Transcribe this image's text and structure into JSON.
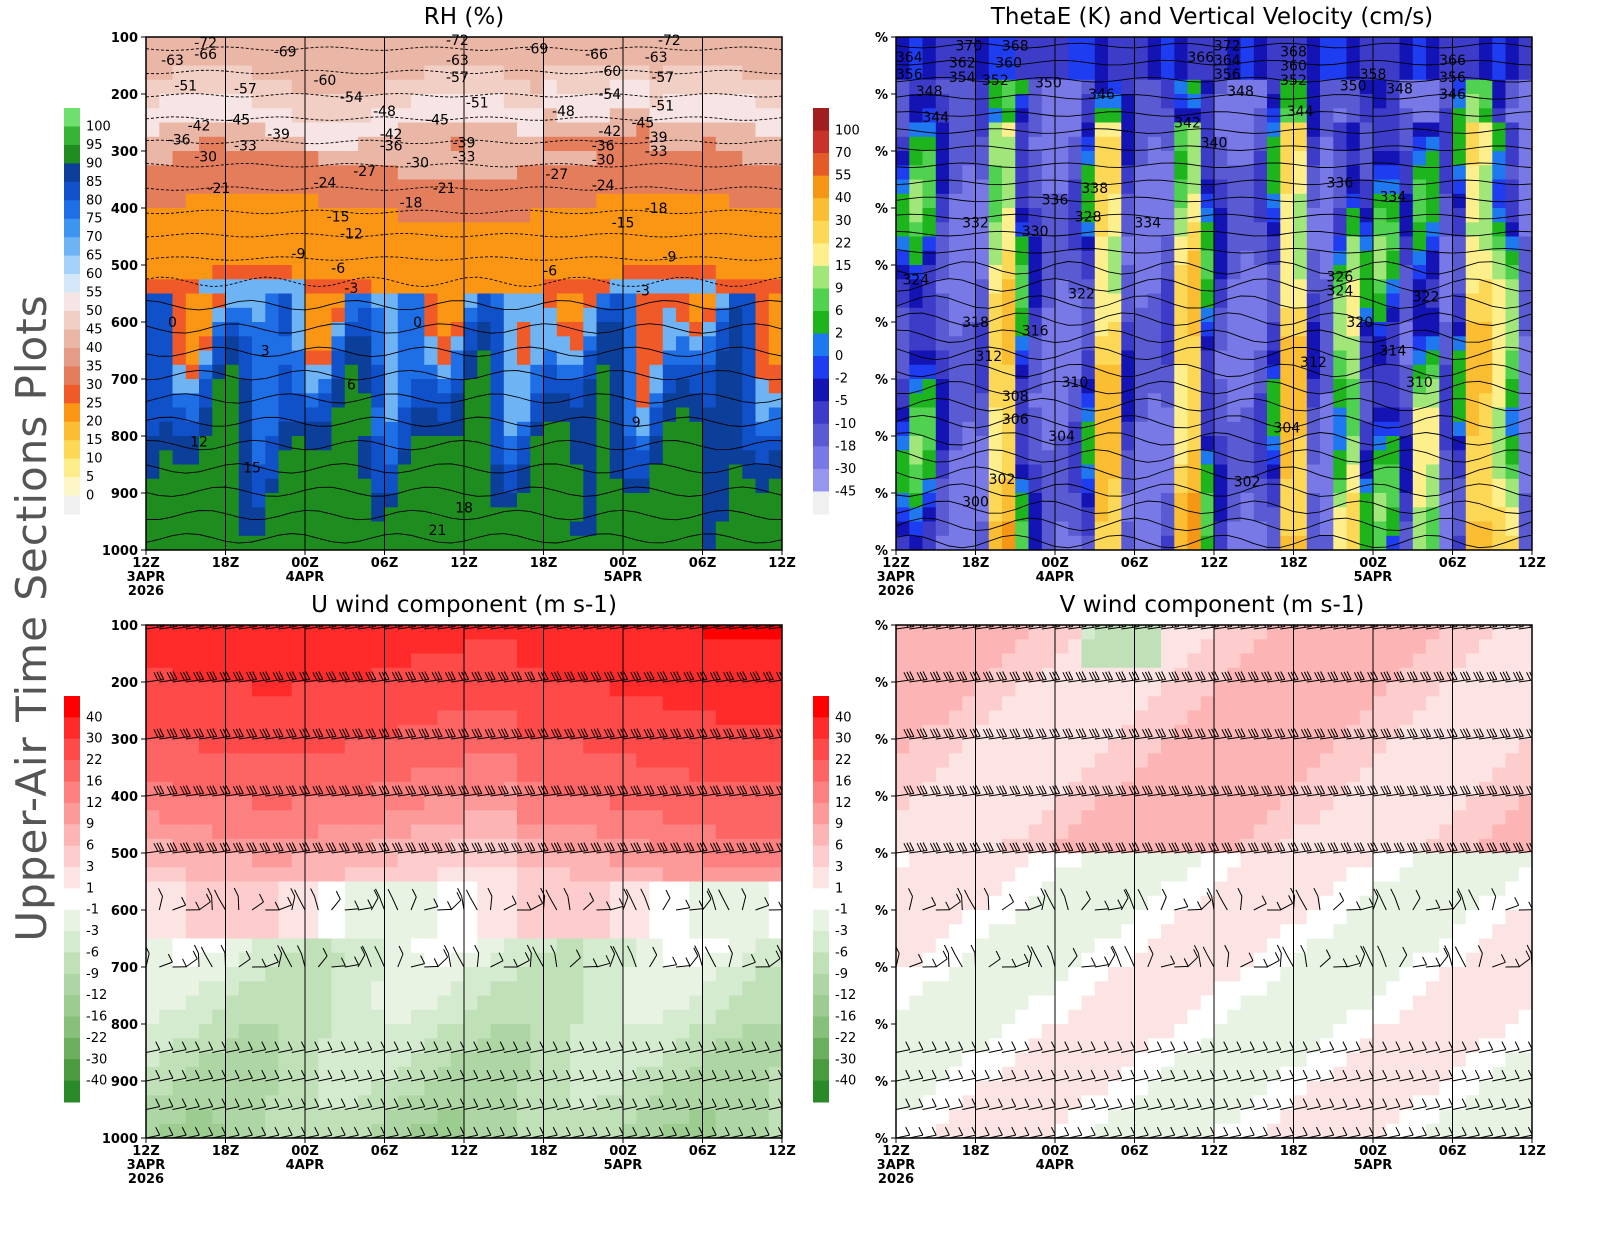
{
  "side_title": "Upper-Air Time Sections Plots",
  "x_ticks": [
    {
      "t": 0,
      "label": "12Z",
      "sub1": "3APR",
      "sub2": "2026"
    },
    {
      "t": 6,
      "label": "18Z"
    },
    {
      "t": 12,
      "label": "00Z",
      "sub1": "4APR"
    },
    {
      "t": 18,
      "label": "06Z"
    },
    {
      "t": 24,
      "label": "12Z"
    },
    {
      "t": 30,
      "label": "18Z"
    },
    {
      "t": 36,
      "label": "00Z",
      "sub1": "5APR"
    },
    {
      "t": 42,
      "label": "06Z"
    },
    {
      "t": 48,
      "label": "12Z"
    }
  ],
  "chart_data": [
    {
      "id": "rh",
      "type": "contour",
      "title": "RH (%)",
      "x_unit": "hours from 12Z 3APR 2026",
      "xlim": [
        0,
        48
      ],
      "ylim": [
        1000,
        100
      ],
      "y_ticks": [
        "100",
        "200",
        "300",
        "400",
        "500",
        "600",
        "700",
        "800",
        "900",
        "1000"
      ],
      "colorbar": {
        "labels": [
          "100",
          "95",
          "90",
          "85",
          "80",
          "75",
          "70",
          "65",
          "60",
          "55",
          "50",
          "45",
          "40",
          "35",
          "30",
          "25",
          "20",
          "15",
          "10",
          "5",
          "0"
        ],
        "colors": [
          "#6ee06e",
          "#36b436",
          "#1e8c1e",
          "#0b3f9a",
          "#1050c8",
          "#1e6ee6",
          "#3c96f0",
          "#6eb4f5",
          "#a5d2fa",
          "#d4e8fa",
          "#f7e4e4",
          "#f2cfc4",
          "#eab6a6",
          "#e59c86",
          "#e47d5c",
          "#f05a28",
          "#fa9614",
          "#fbbd32",
          "#fcd856",
          "#fded8a",
          "#fdf7c8",
          "#f0f0f0"
        ]
      },
      "contour_labels": [
        {
          "t": 2,
          "p": 140,
          "v": "-63"
        },
        {
          "t": 4.5,
          "p": 110,
          "v": "-72"
        },
        {
          "t": 4.5,
          "p": 130,
          "v": "-66"
        },
        {
          "t": 10.5,
          "p": 125,
          "v": "-69"
        },
        {
          "t": 7.5,
          "p": 190,
          "v": "-57"
        },
        {
          "t": 13.5,
          "p": 175,
          "v": "-60"
        },
        {
          "t": 15.5,
          "p": 205,
          "v": "-54"
        },
        {
          "t": 18,
          "p": 230,
          "v": "-48"
        },
        {
          "t": 18.5,
          "p": 270,
          "v": "-42"
        },
        {
          "t": 18.5,
          "p": 290,
          "v": "-36"
        },
        {
          "t": 23.5,
          "p": 105,
          "v": "-72"
        },
        {
          "t": 23.5,
          "p": 140,
          "v": "-63"
        },
        {
          "t": 23.5,
          "p": 170,
          "v": "-57"
        },
        {
          "t": 25,
          "p": 215,
          "v": "-51"
        },
        {
          "t": 22,
          "p": 245,
          "v": "-45"
        },
        {
          "t": 24,
          "p": 285,
          "v": "-39"
        },
        {
          "t": 24,
          "p": 310,
          "v": "-33"
        },
        {
          "t": 29.5,
          "p": 120,
          "v": "-69"
        },
        {
          "t": 34,
          "p": 130,
          "v": "-66"
        },
        {
          "t": 35,
          "p": 160,
          "v": "-60"
        },
        {
          "t": 35,
          "p": 200,
          "v": "-54"
        },
        {
          "t": 31.5,
          "p": 230,
          "v": "-48"
        },
        {
          "t": 35,
          "p": 265,
          "v": "-42"
        },
        {
          "t": 34.5,
          "p": 290,
          "v": "-36"
        },
        {
          "t": 34.5,
          "p": 315,
          "v": "-30"
        },
        {
          "t": 34.5,
          "p": 360,
          "v": "-24"
        },
        {
          "t": 31,
          "p": 340,
          "v": "-27"
        },
        {
          "t": 38.5,
          "p": 135,
          "v": "-63"
        },
        {
          "t": 39,
          "p": 170,
          "v": "-57"
        },
        {
          "t": 39,
          "p": 220,
          "v": "-51"
        },
        {
          "t": 37.5,
          "p": 250,
          "v": "-45"
        },
        {
          "t": 38.5,
          "p": 275,
          "v": "-39"
        },
        {
          "t": 38.5,
          "p": 300,
          "v": "-33"
        },
        {
          "t": 39.5,
          "p": 105,
          "v": "-72"
        },
        {
          "t": 3,
          "p": 185,
          "v": "-51"
        },
        {
          "t": 4,
          "p": 255,
          "v": "-42"
        },
        {
          "t": 2.5,
          "p": 280,
          "v": "-36"
        },
        {
          "t": 4.5,
          "p": 310,
          "v": "-30"
        },
        {
          "t": 7,
          "p": 245,
          "v": "-45"
        },
        {
          "t": 10,
          "p": 270,
          "v": "-39"
        },
        {
          "t": 7.5,
          "p": 290,
          "v": "-33"
        },
        {
          "t": 5.5,
          "p": 365,
          "v": "-21"
        },
        {
          "t": 13.5,
          "p": 355,
          "v": "-24"
        },
        {
          "t": 16.5,
          "p": 335,
          "v": "-27"
        },
        {
          "t": 20.5,
          "p": 320,
          "v": "-30"
        },
        {
          "t": 20,
          "p": 390,
          "v": "-18"
        },
        {
          "t": 14.5,
          "p": 415,
          "v": "-15"
        },
        {
          "t": 15.5,
          "p": 445,
          "v": "-12"
        },
        {
          "t": 22.5,
          "p": 365,
          "v": "-21"
        },
        {
          "t": 11.5,
          "p": 480,
          "v": "-9"
        },
        {
          "t": 14.5,
          "p": 505,
          "v": "-6"
        },
        {
          "t": 15.5,
          "p": 540,
          "v": "-3"
        },
        {
          "t": 36,
          "p": 425,
          "v": "-15"
        },
        {
          "t": 38.5,
          "p": 400,
          "v": "-18"
        },
        {
          "t": 39.5,
          "p": 485,
          "v": "-9"
        },
        {
          "t": 30.5,
          "p": 510,
          "v": "-6"
        },
        {
          "t": 37.5,
          "p": 545,
          "v": "-3"
        },
        {
          "t": 2,
          "p": 600,
          "v": "0"
        },
        {
          "t": 20.5,
          "p": 600,
          "v": "0"
        },
        {
          "t": 9,
          "p": 650,
          "v": "3"
        },
        {
          "t": 15.5,
          "p": 710,
          "v": "6"
        },
        {
          "t": 37,
          "p": 775,
          "v": "9"
        },
        {
          "t": 4,
          "p": 810,
          "v": "12"
        },
        {
          "t": 8,
          "p": 855,
          "v": "15"
        },
        {
          "t": 24,
          "p": 925,
          "v": "18"
        },
        {
          "t": 22,
          "p": 965,
          "v": "21"
        }
      ]
    },
    {
      "id": "thetae",
      "type": "contour",
      "title": "ThetaE (K) and Vertical Velocity (cm/s)",
      "x_unit": "hours from 12Z 3APR 2026",
      "xlim": [
        0,
        48
      ],
      "ylim": [
        1000,
        100
      ],
      "y_ticks": [
        "%",
        "%",
        "%",
        "%",
        "%",
        "%",
        "%",
        "%",
        "%",
        "%"
      ],
      "colorbar": {
        "labels": [
          "100",
          "70",
          "55",
          "40",
          "30",
          "22",
          "15",
          "9",
          "6",
          "2",
          "0",
          "-2",
          "-5",
          "-10",
          "-18",
          "-30",
          "-45"
        ],
        "colors": [
          "#a01e1e",
          "#c83228",
          "#e65a28",
          "#f59614",
          "#fbbd32",
          "#fcd856",
          "#fdf08c",
          "#a0e678",
          "#50d250",
          "#1eb41e",
          "#1e78f0",
          "#1e3cf0",
          "#1414b4",
          "#3c3cc8",
          "#5a5ad2",
          "#7878e6",
          "#9696f0",
          "#f0f0f0"
        ]
      },
      "contour_labels": [
        {
          "t": 1,
          "p": 135,
          "v": "364"
        },
        {
          "t": 1,
          "p": 165,
          "v": "356"
        },
        {
          "t": 2.5,
          "p": 195,
          "v": "348"
        },
        {
          "t": 3,
          "p": 240,
          "v": "344"
        },
        {
          "t": 5.5,
          "p": 115,
          "v": "370"
        },
        {
          "t": 5,
          "p": 145,
          "v": "362"
        },
        {
          "t": 5,
          "p": 170,
          "v": "354"
        },
        {
          "t": 9,
          "p": 115,
          "v": "368"
        },
        {
          "t": 8.5,
          "p": 145,
          "v": "360"
        },
        {
          "t": 7.5,
          "p": 175,
          "v": "352"
        },
        {
          "t": 11.5,
          "p": 180,
          "v": "350"
        },
        {
          "t": 15.5,
          "p": 200,
          "v": "346"
        },
        {
          "t": 15,
          "p": 365,
          "v": "338"
        },
        {
          "t": 12,
          "p": 385,
          "v": "336"
        },
        {
          "t": 6,
          "p": 425,
          "v": "332"
        },
        {
          "t": 10.5,
          "p": 440,
          "v": "330"
        },
        {
          "t": 14.5,
          "p": 415,
          "v": "328"
        },
        {
          "t": 1.5,
          "p": 525,
          "v": "324"
        },
        {
          "t": 14,
          "p": 550,
          "v": "322"
        },
        {
          "t": 6,
          "p": 600,
          "v": "318"
        },
        {
          "t": 10.5,
          "p": 615,
          "v": "316"
        },
        {
          "t": 7,
          "p": 660,
          "v": "312"
        },
        {
          "t": 13.5,
          "p": 705,
          "v": "310"
        },
        {
          "t": 9,
          "p": 730,
          "v": "308"
        },
        {
          "t": 9,
          "p": 770,
          "v": "306"
        },
        {
          "t": 12.5,
          "p": 800,
          "v": "304"
        },
        {
          "t": 8,
          "p": 875,
          "v": "302"
        },
        {
          "t": 6,
          "p": 915,
          "v": "300"
        },
        {
          "t": 19,
          "p": 425,
          "v": "334"
        },
        {
          "t": 22,
          "p": 250,
          "v": "342"
        },
        {
          "t": 24,
          "p": 285,
          "v": "340"
        },
        {
          "t": 26,
          "p": 195,
          "v": "348"
        },
        {
          "t": 23,
          "p": 135,
          "v": "366"
        },
        {
          "t": 25,
          "p": 115,
          "v": "372"
        },
        {
          "t": 25,
          "p": 140,
          "v": "364"
        },
        {
          "t": 25,
          "p": 165,
          "v": "356"
        },
        {
          "t": 30,
          "p": 125,
          "v": "368"
        },
        {
          "t": 30,
          "p": 150,
          "v": "360"
        },
        {
          "t": 30,
          "p": 175,
          "v": "352"
        },
        {
          "t": 30.5,
          "p": 230,
          "v": "344"
        },
        {
          "t": 34.5,
          "p": 185,
          "v": "350"
        },
        {
          "t": 36,
          "p": 165,
          "v": "358"
        },
        {
          "t": 38,
          "p": 190,
          "v": "348"
        },
        {
          "t": 42,
          "p": 140,
          "v": "366"
        },
        {
          "t": 42,
          "p": 170,
          "v": "356"
        },
        {
          "t": 42,
          "p": 200,
          "v": "346"
        },
        {
          "t": 33.5,
          "p": 355,
          "v": "336"
        },
        {
          "t": 37.5,
          "p": 380,
          "v": "334"
        },
        {
          "t": 33.5,
          "p": 520,
          "v": "326"
        },
        {
          "t": 33.5,
          "p": 545,
          "v": "324"
        },
        {
          "t": 35,
          "p": 600,
          "v": "320"
        },
        {
          "t": 40,
          "p": 555,
          "v": "322"
        },
        {
          "t": 37.5,
          "p": 650,
          "v": "314"
        },
        {
          "t": 31.5,
          "p": 670,
          "v": "312"
        },
        {
          "t": 39.5,
          "p": 705,
          "v": "310"
        },
        {
          "t": 29.5,
          "p": 785,
          "v": "304"
        },
        {
          "t": 26.5,
          "p": 880,
          "v": "302"
        }
      ]
    },
    {
      "id": "u",
      "type": "contour",
      "title": "U wind component (m s-1)",
      "x_unit": "hours from 12Z 3APR 2026",
      "xlim": [
        0,
        48
      ],
      "ylim": [
        1000,
        100
      ],
      "y_ticks": [
        "100",
        "200",
        "300",
        "400",
        "500",
        "600",
        "700",
        "800",
        "900",
        "1000"
      ],
      "colorbar": {
        "labels": [
          "40",
          "30",
          "22",
          "16",
          "12",
          "9",
          "6",
          "3",
          "1",
          "-1",
          "-3",
          "-6",
          "-9",
          "-12",
          "-16",
          "-22",
          "-30",
          "-40"
        ],
        "colors": [
          "#ff0000",
          "#ff2a2a",
          "#ff4a4a",
          "#fd6464",
          "#fc8080",
          "#fc9a9a",
          "#fdb4b4",
          "#fdcccc",
          "#fde4e4",
          "#ffffff",
          "#e8f3e4",
          "#d4ebcf",
          "#c0e1b8",
          "#aed6a4",
          "#9ccc90",
          "#86c07a",
          "#6aae5e",
          "#4a9a40",
          "#2a8a2a"
        ]
      }
    },
    {
      "id": "v",
      "type": "contour",
      "title": "V wind component (m s-1)",
      "x_unit": "hours from 12Z 3APR 2026",
      "xlim": [
        0,
        48
      ],
      "ylim": [
        1000,
        100
      ],
      "y_ticks": [
        "%",
        "%",
        "%",
        "%",
        "%",
        "%",
        "%",
        "%",
        "%",
        "%"
      ],
      "colorbar": {
        "labels": [
          "40",
          "30",
          "22",
          "16",
          "12",
          "9",
          "6",
          "3",
          "1",
          "-1",
          "-3",
          "-6",
          "-9",
          "-12",
          "-16",
          "-22",
          "-30",
          "-40"
        ],
        "colors": [
          "#ff0000",
          "#ff2a2a",
          "#ff4a4a",
          "#fd6464",
          "#fc8080",
          "#fc9a9a",
          "#fdb4b4",
          "#fdcccc",
          "#fde4e4",
          "#ffffff",
          "#e8f3e4",
          "#d4ebcf",
          "#c0e1b8",
          "#aed6a4",
          "#9ccc90",
          "#86c07a",
          "#6aae5e",
          "#4a9a40",
          "#2a8a2a"
        ]
      }
    }
  ]
}
